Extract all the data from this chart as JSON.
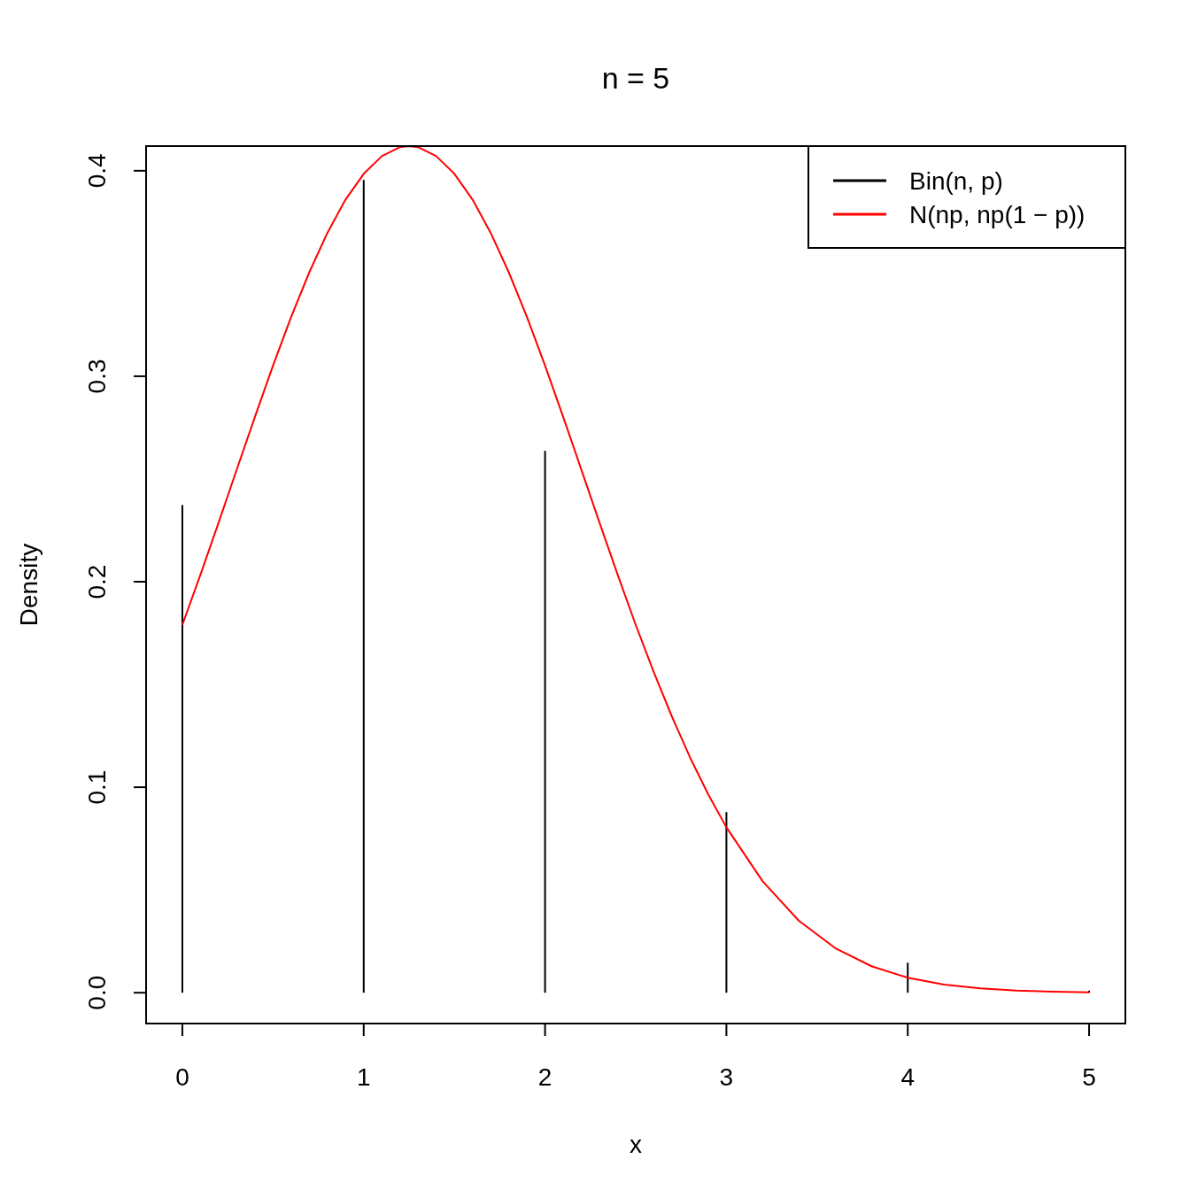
{
  "chart_data": {
    "type": "bar",
    "title": "n = 5",
    "xlabel": "x",
    "ylabel": "Density",
    "xlim": [
      -0.2,
      5.2
    ],
    "xticks": [
      0,
      1,
      2,
      3,
      4,
      5
    ],
    "ylim": [
      -0.015,
      0.412
    ],
    "yticks": [
      {
        "value": 0,
        "label": "0.0"
      },
      0.1,
      0.2,
      0.3,
      0.4
    ],
    "grid": false,
    "legend": "top right",
    "series": [
      {
        "name": "Bin(n, p)",
        "color": "#000000",
        "x": [
          0,
          1,
          2,
          3,
          4,
          5
        ],
        "values": [
          0.2373,
          0.3955,
          0.2637,
          0.0879,
          0.0146,
          0.001
        ]
      },
      {
        "name": "N(np, np(1 − p))",
        "type": "line",
        "color": "#ff0000",
        "line_style": "solid",
        "marker": "none",
        "x": [
          0,
          0.1,
          0.2,
          0.3,
          0.4,
          0.5,
          0.6,
          0.7,
          0.8,
          0.9,
          1.0,
          1.1,
          1.2,
          1.25,
          1.3,
          1.4,
          1.5,
          1.6,
          1.7,
          1.8,
          1.9,
          2.0,
          2.1,
          2.2,
          2.3,
          2.4,
          2.5,
          2.6,
          2.7,
          2.8,
          2.9,
          3.0,
          3.2,
          3.4,
          3.6,
          3.8,
          4.0,
          4.2,
          4.4,
          4.6,
          4.8,
          5.0
        ],
        "values": [
          0.179,
          0.2035,
          0.2288,
          0.2546,
          0.2802,
          0.3052,
          0.3289,
          0.3506,
          0.3698,
          0.386,
          0.3985,
          0.4071,
          0.4115,
          0.412,
          0.4115,
          0.4071,
          0.3985,
          0.386,
          0.3698,
          0.3506,
          0.3289,
          0.3052,
          0.2802,
          0.2546,
          0.2288,
          0.2035,
          0.179,
          0.1559,
          0.1343,
          0.1144,
          0.0965,
          0.0805,
          0.0542,
          0.035,
          0.0217,
          0.0129,
          0.0073,
          0.004,
          0.0021,
          0.001,
          0.0005,
          0.0002
        ]
      }
    ]
  }
}
